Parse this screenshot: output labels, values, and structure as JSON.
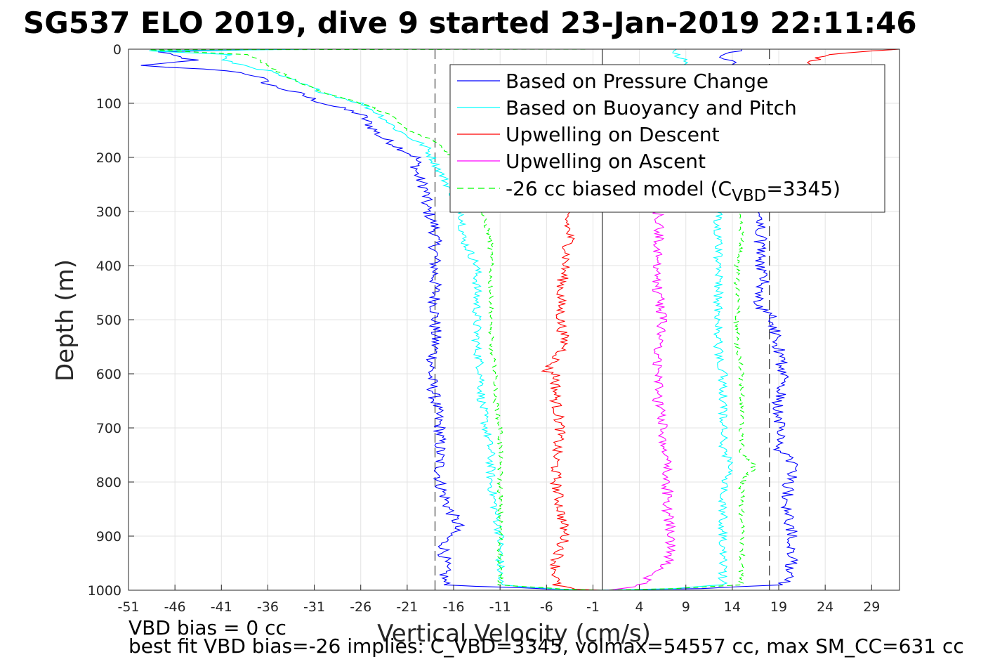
{
  "chart_data": {
    "type": "line",
    "title": "SG537 ELO 2019, dive 9 started 23-Jan-2019 22:11:46",
    "xlabel": "Vertical Velocity (cm/s)",
    "ylabel": "Depth (m)",
    "xlim": [
      -51,
      32
    ],
    "ylim": [
      1000,
      0
    ],
    "y_reversed": true,
    "grid": true,
    "legend_position": "top-right",
    "xticks": [
      "-51",
      "-46",
      "-41",
      "-36",
      "-31",
      "-26",
      "-21",
      "-16",
      "-11",
      "-6",
      "-1",
      "4",
      "9",
      "14",
      "19",
      "24",
      "29"
    ],
    "xtick_values": [
      -51,
      -46,
      -41,
      -36,
      -31,
      -26,
      -21,
      -16,
      -11,
      -6,
      -1,
      4,
      9,
      14,
      19,
      24,
      29
    ],
    "yticks": [
      "0",
      "100",
      "200",
      "300",
      "400",
      "500",
      "600",
      "700",
      "800",
      "900",
      "1000"
    ],
    "ytick_values": [
      0,
      100,
      200,
      300,
      400,
      500,
      600,
      700,
      800,
      900,
      1000
    ],
    "reference_lines": [
      {
        "x": 0,
        "style": "solid",
        "color": "#000000"
      },
      {
        "x": -18,
        "style": "dashed",
        "color": "#000000"
      },
      {
        "x": 18,
        "style": "dashed",
        "color": "#000000"
      }
    ],
    "series": [
      {
        "name": "Based on Pressure Change",
        "color": "#0000ff",
        "style": "solid",
        "noise": 0.7,
        "descent": [
          [
            0,
            -35
          ],
          [
            5,
            -48
          ],
          [
            20,
            -44
          ],
          [
            30,
            -50
          ],
          [
            40,
            -40
          ],
          [
            50,
            -37
          ],
          [
            65,
            -36
          ],
          [
            80,
            -33
          ],
          [
            100,
            -30
          ],
          [
            120,
            -26
          ],
          [
            140,
            -25
          ],
          [
            160,
            -24
          ],
          [
            180,
            -22
          ],
          [
            200,
            -20
          ],
          [
            230,
            -20
          ],
          [
            260,
            -19
          ],
          [
            290,
            -19
          ],
          [
            330,
            -18
          ],
          [
            400,
            -18
          ],
          [
            450,
            -18
          ],
          [
            500,
            -18
          ],
          [
            550,
            -18
          ],
          [
            600,
            -18.5
          ],
          [
            650,
            -18
          ],
          [
            700,
            -17.5
          ],
          [
            750,
            -17.5
          ],
          [
            800,
            -17.5
          ],
          [
            850,
            -16.5
          ],
          [
            880,
            -15.5
          ],
          [
            910,
            -17
          ],
          [
            950,
            -17
          ],
          [
            990,
            -17
          ],
          [
            998,
            -5
          ],
          [
            1000,
            0
          ]
        ],
        "ascent": [
          [
            1000,
            0
          ],
          [
            997,
            10
          ],
          [
            990,
            19.5
          ],
          [
            950,
            20.5
          ],
          [
            900,
            20.5
          ],
          [
            850,
            20
          ],
          [
            800,
            20
          ],
          [
            770,
            21
          ],
          [
            740,
            19
          ],
          [
            700,
            19
          ],
          [
            650,
            19
          ],
          [
            600,
            19.5
          ],
          [
            550,
            19
          ],
          [
            500,
            18.5
          ],
          [
            470,
            16.5
          ],
          [
            430,
            17.5
          ],
          [
            400,
            17
          ],
          [
            350,
            17
          ],
          [
            320,
            17
          ],
          [
            300,
            17
          ],
          [
            270,
            17.5
          ],
          [
            250,
            18
          ],
          [
            200,
            18
          ],
          [
            150,
            17
          ],
          [
            100,
            18
          ],
          [
            40,
            15
          ],
          [
            15,
            13
          ],
          [
            0,
            15
          ]
        ]
      },
      {
        "name": "Based on Buoyancy and Pitch",
        "color": "#00ffff",
        "style": "solid",
        "noise": 0.5,
        "descent": [
          [
            0,
            -30
          ],
          [
            3,
            -49
          ],
          [
            10,
            -40
          ],
          [
            20,
            -41
          ],
          [
            40,
            -36
          ],
          [
            60,
            -33
          ],
          [
            80,
            -30
          ],
          [
            100,
            -26
          ],
          [
            120,
            -24
          ],
          [
            150,
            -22
          ],
          [
            180,
            -19
          ],
          [
            210,
            -18
          ],
          [
            240,
            -17
          ],
          [
            270,
            -16
          ],
          [
            300,
            -15
          ],
          [
            350,
            -15
          ],
          [
            400,
            -13.5
          ],
          [
            450,
            -13.5
          ],
          [
            500,
            -13.5
          ],
          [
            550,
            -13.5
          ],
          [
            600,
            -13
          ],
          [
            650,
            -13
          ],
          [
            700,
            -12.5
          ],
          [
            750,
            -12
          ],
          [
            800,
            -12
          ],
          [
            850,
            -11.5
          ],
          [
            900,
            -11
          ],
          [
            950,
            -11
          ],
          [
            990,
            -11
          ],
          [
            998,
            -5
          ],
          [
            1000,
            0
          ]
        ],
        "ascent": [
          [
            1000,
            0
          ],
          [
            997,
            8
          ],
          [
            990,
            13
          ],
          [
            950,
            13
          ],
          [
            900,
            13
          ],
          [
            850,
            13
          ],
          [
            800,
            13
          ],
          [
            770,
            14
          ],
          [
            740,
            13
          ],
          [
            700,
            13
          ],
          [
            650,
            13
          ],
          [
            600,
            13
          ],
          [
            550,
            12.5
          ],
          [
            500,
            12.5
          ],
          [
            450,
            12.5
          ],
          [
            400,
            12.5
          ],
          [
            350,
            12.5
          ],
          [
            320,
            12.5
          ],
          [
            300,
            12.5
          ],
          [
            150,
            11
          ],
          [
            100,
            11
          ],
          [
            40,
            10
          ],
          [
            10,
            8
          ],
          [
            0,
            8
          ]
        ]
      },
      {
        "name": "Upwelling on Descent",
        "color": "#ff0000",
        "style": "solid",
        "noise": 0.6,
        "descent": [
          [
            0,
            32
          ],
          [
            10,
            24
          ],
          [
            300,
            -4
          ],
          [
            350,
            -3.5
          ],
          [
            400,
            -4
          ],
          [
            450,
            -4.5
          ],
          [
            500,
            -4.5
          ],
          [
            550,
            -4
          ],
          [
            595,
            -6
          ],
          [
            600,
            -5
          ],
          [
            650,
            -5
          ],
          [
            700,
            -4.5
          ],
          [
            750,
            -5
          ],
          [
            800,
            -5
          ],
          [
            850,
            -4.5
          ],
          [
            900,
            -4
          ],
          [
            950,
            -5
          ],
          [
            990,
            -5
          ],
          [
            998,
            -3
          ],
          [
            1000,
            0
          ]
        ],
        "ascent": []
      },
      {
        "name": "Upwelling on Ascent",
        "color": "#ff00ff",
        "style": "solid",
        "noise": 0.6,
        "descent": [],
        "ascent": [
          [
            1000,
            0
          ],
          [
            997,
            2
          ],
          [
            990,
            4
          ],
          [
            950,
            7
          ],
          [
            900,
            7.5
          ],
          [
            850,
            7
          ],
          [
            800,
            7
          ],
          [
            750,
            7
          ],
          [
            700,
            6.5
          ],
          [
            650,
            6
          ],
          [
            600,
            6
          ],
          [
            550,
            6
          ],
          [
            500,
            6.5
          ],
          [
            450,
            6
          ],
          [
            400,
            6
          ],
          [
            350,
            6
          ],
          [
            300,
            6
          ]
        ]
      },
      {
        "name": "-26 cc biased model (C_VBD=3345)",
        "legend_main": "-26 cc biased model (C",
        "legend_sub": "VBD",
        "legend_tail": "=3345)",
        "color": "#00ff00",
        "style": "dashed",
        "noise": 0.3,
        "descent": [
          [
            0,
            -1
          ],
          [
            1,
            -49
          ],
          [
            10,
            -38
          ],
          [
            30,
            -36
          ],
          [
            50,
            -34
          ],
          [
            80,
            -30
          ],
          [
            100,
            -26
          ],
          [
            120,
            -23
          ],
          [
            150,
            -21
          ],
          [
            170,
            -18
          ],
          [
            200,
            -16
          ],
          [
            250,
            -14
          ],
          [
            300,
            -13
          ],
          [
            350,
            -12
          ],
          [
            400,
            -12
          ],
          [
            450,
            -12
          ],
          [
            500,
            -12
          ],
          [
            550,
            -12
          ],
          [
            600,
            -11.5
          ],
          [
            650,
            -11.5
          ],
          [
            700,
            -11
          ],
          [
            750,
            -11
          ],
          [
            800,
            -11
          ],
          [
            850,
            -11
          ],
          [
            900,
            -11
          ],
          [
            950,
            -11
          ],
          [
            990,
            -11
          ],
          [
            998,
            -4
          ],
          [
            1000,
            0
          ]
        ],
        "ascent": [
          [
            1000,
            0
          ],
          [
            997,
            8
          ],
          [
            990,
            15
          ],
          [
            950,
            15
          ],
          [
            900,
            15
          ],
          [
            850,
            15
          ],
          [
            800,
            15
          ],
          [
            770,
            16.5
          ],
          [
            750,
            15
          ],
          [
            700,
            15
          ],
          [
            650,
            15
          ],
          [
            600,
            15
          ],
          [
            550,
            14.5
          ],
          [
            500,
            14.5
          ],
          [
            450,
            14.5
          ],
          [
            400,
            14.5
          ],
          [
            350,
            15
          ],
          [
            300,
            15
          ]
        ]
      }
    ]
  },
  "footer": {
    "line1": "VBD bias = 0 cc",
    "line2": "best fit VBD bias=-26 implies: C_VBD=3345, volmax=54557 cc, max SM_CC=631 cc"
  }
}
